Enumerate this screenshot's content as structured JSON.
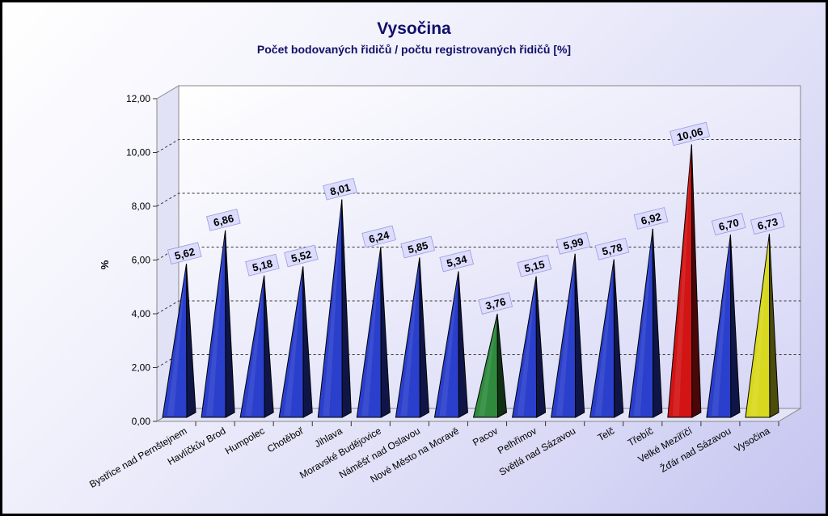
{
  "chart_data": {
    "type": "bar",
    "title": "Vysočina",
    "subtitle": "Počet bodovaných řidičů / počtu registrovaných řidičů [%]",
    "xlabel": "",
    "ylabel": "%",
    "ylim": [
      0,
      12
    ],
    "yticks": [
      "0,00",
      "2,00",
      "4,00",
      "6,00",
      "8,00",
      "10,00",
      "12,00"
    ],
    "grid": true,
    "categories": [
      "Bystřice nad Pernštejnem",
      "Havlíčkův Brod",
      "Humpolec",
      "Chotěboř",
      "Jihlava",
      "Moravské Budějovice",
      "Náměšť nad Oslavou",
      "Nové Město na Moravě",
      "Pacov",
      "Pelhřimov",
      "Světlá nad Sázavou",
      "Telč",
      "Třebíč",
      "Velké Meziříčí",
      "Žďár nad Sázavou",
      "Vysočina"
    ],
    "values": [
      5.62,
      6.86,
      5.18,
      5.52,
      8.01,
      6.24,
      5.85,
      5.34,
      3.76,
      5.15,
      5.99,
      5.78,
      6.92,
      10.06,
      6.7,
      6.73
    ],
    "data_labels": [
      "5,62",
      "6,86",
      "5,18",
      "5,52",
      "8,01",
      "6,24",
      "5,85",
      "5,34",
      "3,76",
      "5,15",
      "5,99",
      "5,78",
      "6,92",
      "10,06",
      "6,70",
      "6,73"
    ],
    "colors": [
      "#2a3fcc",
      "#2a3fcc",
      "#2a3fcc",
      "#2a3fcc",
      "#2a3fcc",
      "#2a3fcc",
      "#2a3fcc",
      "#2a3fcc",
      "#2f8a3e",
      "#2a3fcc",
      "#2a3fcc",
      "#2a3fcc",
      "#2a3fcc",
      "#d21414",
      "#2a3fcc",
      "#d8d81e"
    ]
  }
}
